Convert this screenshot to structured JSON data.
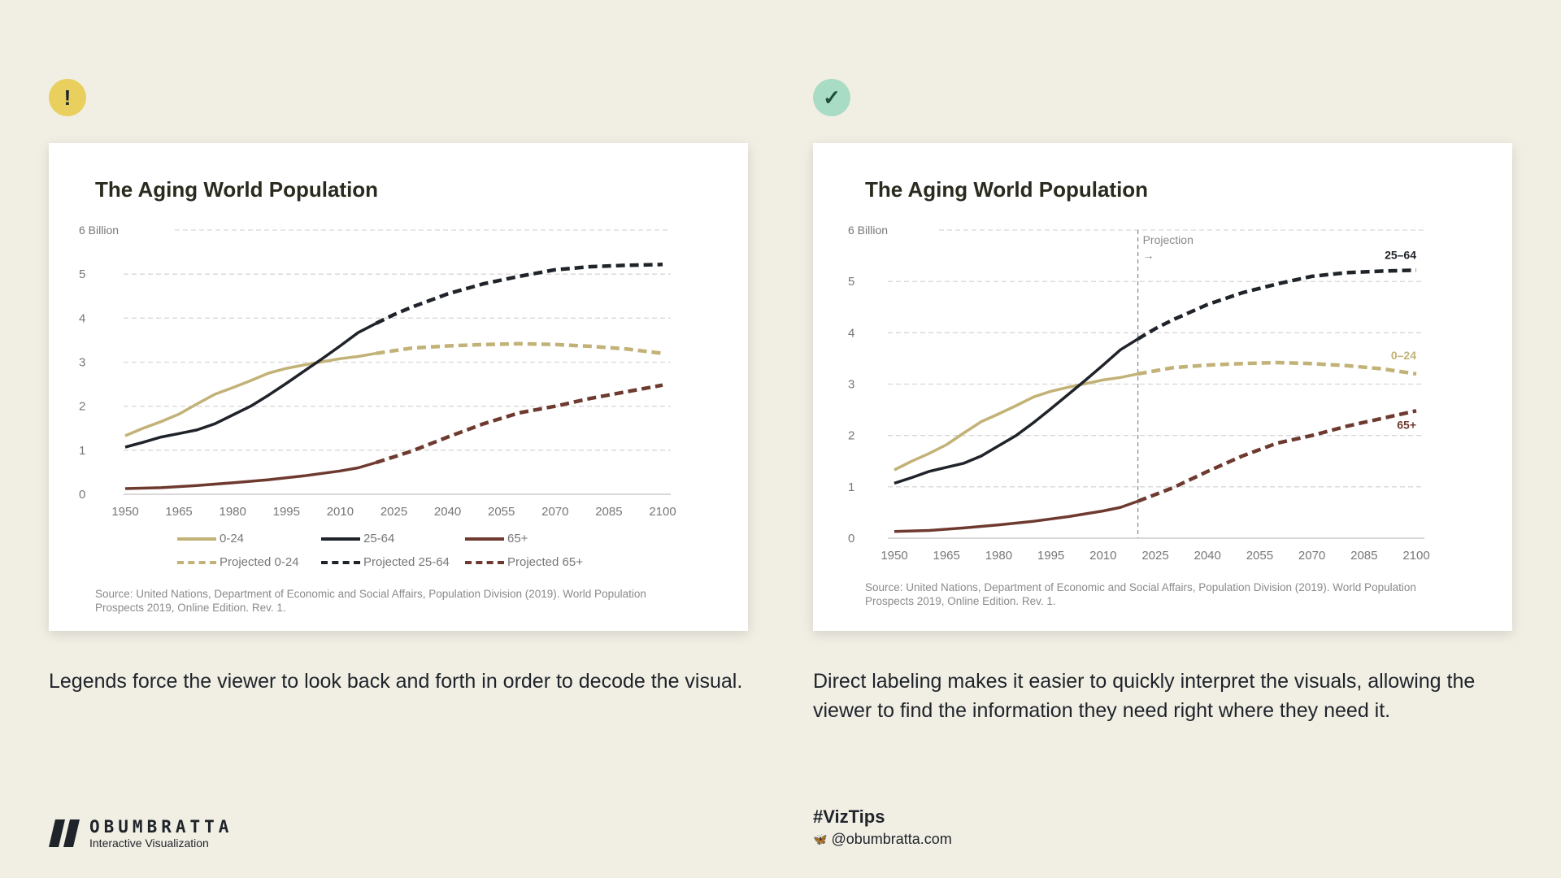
{
  "left": {
    "badge": "!",
    "title": "The Aging World Population",
    "source": "Source: United Nations, Department of Economic and Social Affairs, Population Division (2019). World Population Prospects 2019, Online Edition. Rev. 1.",
    "caption": "Legends force the viewer to look back and forth in order to decode the visual.",
    "legend": [
      "0-24",
      "25-64",
      "65+",
      "Projected 0-24",
      "Projected 25-64",
      "Projected 65+"
    ]
  },
  "right": {
    "badge": "✓",
    "title": "The Aging World Population",
    "source": "Source: United Nations, Department of Economic and Social Affairs, Population Division (2019). World Population Prospects 2019, Online Edition. Rev. 1.",
    "caption": "Direct labeling makes it easier to quickly interpret the visuals, allowing the viewer to find the information they need right where they need it.",
    "projection_label": "Projection",
    "projection_arrow": "→",
    "labels": [
      "0–24",
      "25–64",
      "65+"
    ]
  },
  "footer": {
    "brand": "OBUMBRATTA",
    "tagline": "Interactive Visualization",
    "hashtag": "#VizTips",
    "handle": "@obumbratta.com"
  },
  "colors": {
    "bg": "#f1efe4",
    "warn": "#e8cf5e",
    "ok": "#a8dcc4",
    "young": "#c2b277",
    "adult": "#1f232a",
    "old": "#6e3a30"
  },
  "chart_data": {
    "type": "line",
    "title": "The Aging World Population",
    "ylabel": "",
    "xlabel": "",
    "ylim": [
      0,
      6
    ],
    "xlim": [
      1950,
      2100
    ],
    "yticks": [
      "0",
      "1",
      "2",
      "3",
      "4",
      "5",
      "6 Billion"
    ],
    "xticks": [
      "1950",
      "1965",
      "1980",
      "1995",
      "2010",
      "2025",
      "2040",
      "2055",
      "2070",
      "2085",
      "2100"
    ],
    "projection_start": 2020,
    "series": [
      {
        "name": "0-24",
        "x": [
          1950,
          1955,
          1960,
          1965,
          1970,
          1975,
          1980,
          1985,
          1990,
          1995,
          2000,
          2005,
          2010,
          2015,
          2020,
          2025,
          2030,
          2040,
          2050,
          2060,
          2070,
          2080,
          2090,
          2100
        ],
        "values": [
          1.33,
          1.5,
          1.65,
          1.82,
          2.05,
          2.27,
          2.42,
          2.58,
          2.75,
          2.86,
          2.94,
          3.01,
          3.08,
          3.13,
          3.2,
          3.26,
          3.32,
          3.37,
          3.4,
          3.42,
          3.4,
          3.36,
          3.3,
          3.2
        ]
      },
      {
        "name": "25-64",
        "x": [
          1950,
          1955,
          1960,
          1965,
          1970,
          1975,
          1980,
          1985,
          1990,
          1995,
          2000,
          2005,
          2010,
          2015,
          2020,
          2025,
          2030,
          2040,
          2050,
          2060,
          2070,
          2080,
          2090,
          2100
        ],
        "values": [
          1.07,
          1.18,
          1.3,
          1.38,
          1.46,
          1.6,
          1.8,
          2.0,
          2.25,
          2.52,
          2.8,
          3.08,
          3.37,
          3.67,
          3.88,
          4.08,
          4.25,
          4.55,
          4.78,
          4.95,
          5.1,
          5.17,
          5.2,
          5.22
        ]
      },
      {
        "name": "65+",
        "x": [
          1950,
          1960,
          1970,
          1980,
          1990,
          2000,
          2010,
          2015,
          2020,
          2030,
          2040,
          2050,
          2060,
          2070,
          2080,
          2090,
          2100
        ],
        "values": [
          0.13,
          0.15,
          0.2,
          0.26,
          0.33,
          0.42,
          0.53,
          0.6,
          0.72,
          0.98,
          1.3,
          1.6,
          1.85,
          2.0,
          2.18,
          2.33,
          2.48
        ]
      }
    ]
  }
}
